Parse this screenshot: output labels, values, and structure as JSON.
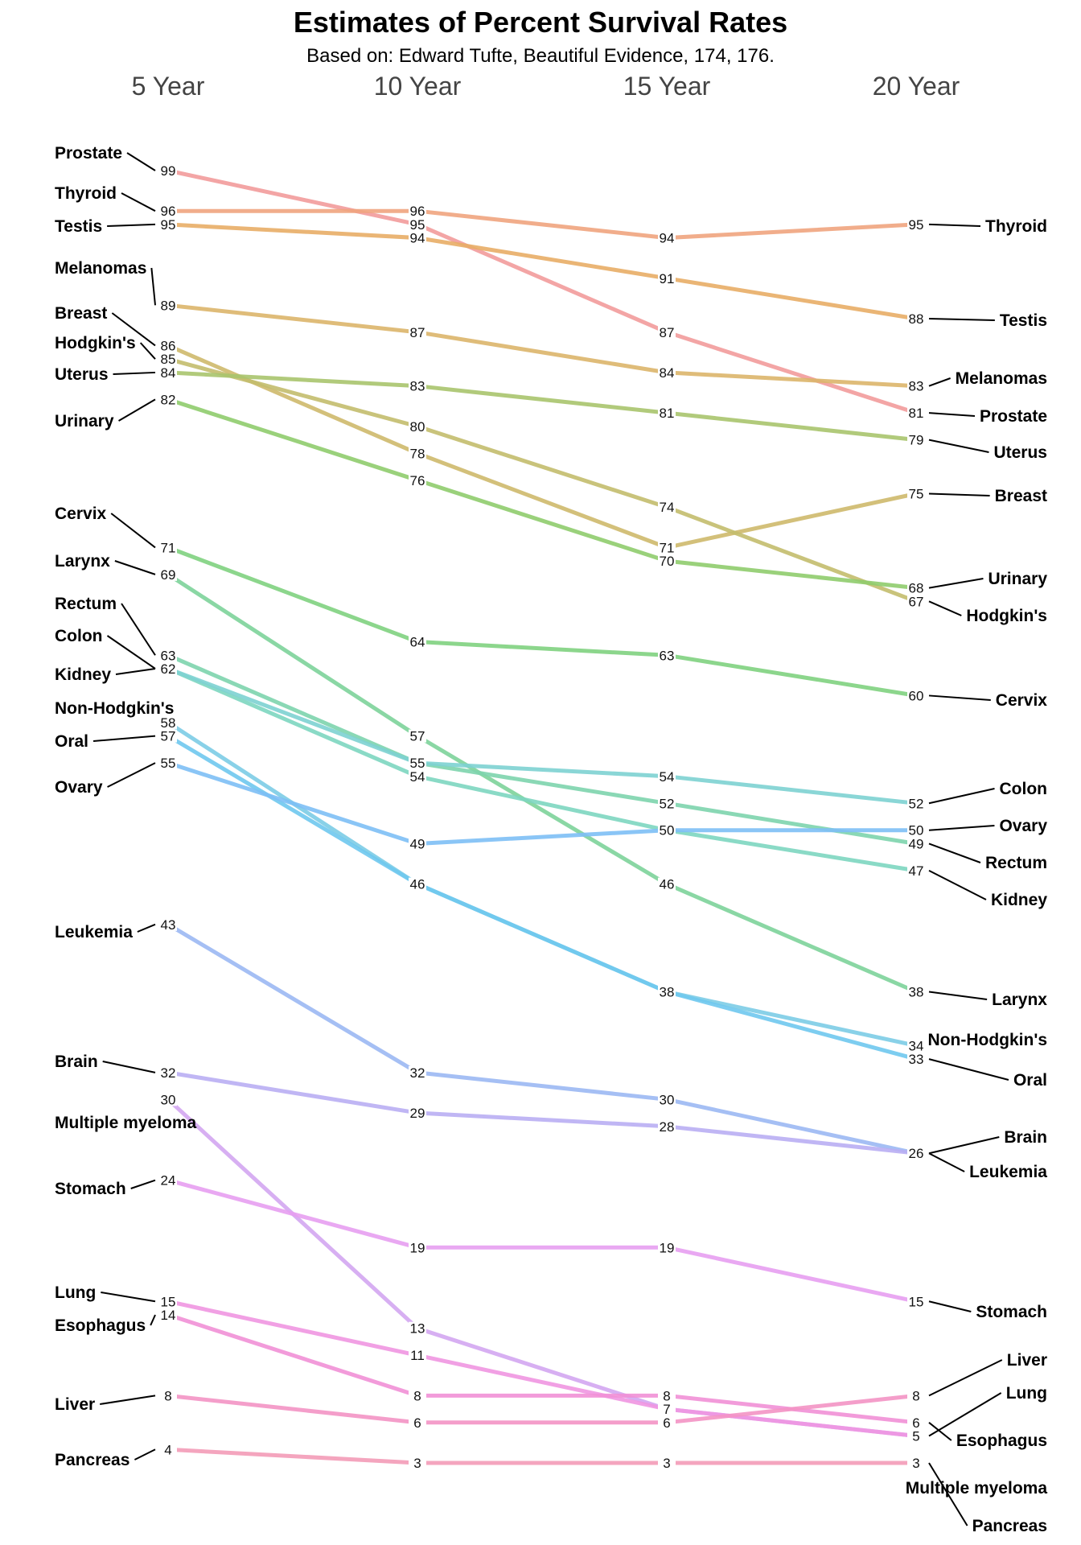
{
  "title": "Estimates of Percent Survival Rates",
  "subtitle": "Based on: Edward Tufte, Beautiful Evidence, 174, 176.",
  "chart_data": {
    "type": "slope",
    "title": "Estimates of Percent Survival Rates",
    "subtitle": "Based on: Edward Tufte, Beautiful Evidence, 174, 176.",
    "x": [
      "5 Year",
      "10 Year",
      "15 Year",
      "20 Year"
    ],
    "ylim": [
      3,
      99
    ],
    "series": [
      {
        "name": "Prostate",
        "values": [
          99,
          95,
          87,
          81
        ],
        "color": "#f29b9b"
      },
      {
        "name": "Thyroid",
        "values": [
          96,
          96,
          94,
          95
        ],
        "color": "#efa47e"
      },
      {
        "name": "Testis",
        "values": [
          95,
          94,
          91,
          88
        ],
        "color": "#e8ad66"
      },
      {
        "name": "Melanomas",
        "values": [
          89,
          87,
          84,
          83
        ],
        "color": "#dcb56a"
      },
      {
        "name": "Breast",
        "values": [
          86,
          78,
          71,
          75
        ],
        "color": "#ceb96b"
      },
      {
        "name": "Hodgkin's",
        "values": [
          85,
          80,
          74,
          67
        ],
        "color": "#c3bd6d"
      },
      {
        "name": "Uterus",
        "values": [
          84,
          83,
          81,
          79
        ],
        "color": "#a9c46d"
      },
      {
        "name": "Urinary",
        "values": [
          82,
          76,
          70,
          68
        ],
        "color": "#8fcc6d"
      },
      {
        "name": "Cervix",
        "values": [
          71,
          64,
          63,
          60
        ],
        "color": "#7fd17f"
      },
      {
        "name": "Larynx",
        "values": [
          69,
          57,
          46,
          38
        ],
        "color": "#7dd39a"
      },
      {
        "name": "Rectum",
        "values": [
          63,
          55,
          52,
          49
        ],
        "color": "#7dd4ad"
      },
      {
        "name": "Kidney",
        "values": [
          62,
          54,
          50,
          47
        ],
        "color": "#7dd6c0"
      },
      {
        "name": "Colon",
        "values": [
          62,
          55,
          54,
          52
        ],
        "color": "#7dd2d2"
      },
      {
        "name": "Non-Hodgkin's",
        "values": [
          58,
          46,
          38,
          34
        ],
        "color": "#7ccce6"
      },
      {
        "name": "Oral",
        "values": [
          57,
          46,
          38,
          33
        ],
        "color": "#6fc8ee"
      },
      {
        "name": "Ovary",
        "values": [
          55,
          49,
          50,
          50
        ],
        "color": "#7dbff5"
      },
      {
        "name": "Leukemia",
        "values": [
          43,
          32,
          30,
          26
        ],
        "color": "#9bb8f3"
      },
      {
        "name": "Brain",
        "values": [
          32,
          29,
          28,
          26
        ],
        "color": "#b9aef3"
      },
      {
        "name": "Multiple myeloma",
        "values": [
          30,
          13,
          7,
          5
        ],
        "color": "#d3a6f1"
      },
      {
        "name": "Stomach",
        "values": [
          24,
          19,
          19,
          15
        ],
        "color": "#e79ff1"
      },
      {
        "name": "Lung",
        "values": [
          15,
          11,
          7,
          5
        ],
        "color": "#f096e1"
      },
      {
        "name": "Esophagus",
        "values": [
          14,
          8,
          8,
          6
        ],
        "color": "#f190d6"
      },
      {
        "name": "Liver",
        "values": [
          8,
          6,
          6,
          8
        ],
        "color": "#f393c4"
      },
      {
        "name": "Pancreas",
        "values": [
          4,
          3,
          3,
          3
        ],
        "color": "#f39bb7"
      }
    ],
    "left_labels": [
      {
        "series": "Prostate",
        "text": "Prostate"
      },
      {
        "series": "Thyroid",
        "text": "Thyroid"
      },
      {
        "series": "Testis",
        "text": "Testis"
      },
      {
        "series": "Melanomas",
        "text": "Melanomas"
      },
      {
        "series": "Breast",
        "text": "Breast"
      },
      {
        "series": "Hodgkin's",
        "text": "Hodgkin's"
      },
      {
        "series": "Uterus",
        "text": "Uterus"
      },
      {
        "series": "Urinary",
        "text": "Urinary"
      },
      {
        "series": "Cervix",
        "text": "Cervix"
      },
      {
        "series": "Larynx",
        "text": "Larynx"
      },
      {
        "series": "Rectum",
        "text": "Rectum"
      },
      {
        "series": "Colon",
        "text": "Colon"
      },
      {
        "series": "Kidney",
        "text": "Kidney"
      },
      {
        "series": "Non-Hodgkin's",
        "text": "Non-Hodgkin's"
      },
      {
        "series": "Oral",
        "text": "Oral"
      },
      {
        "series": "Ovary",
        "text": "Ovary"
      },
      {
        "series": "Leukemia",
        "text": "Leukemia"
      },
      {
        "series": "Brain",
        "text": "Brain"
      },
      {
        "series": "Multiple myeloma",
        "text": "Multiple myeloma"
      },
      {
        "series": "Stomach",
        "text": "Stomach"
      },
      {
        "series": "Lung",
        "text": "Lung"
      },
      {
        "series": "Esophagus",
        "text": "Esophagus"
      },
      {
        "series": "Liver",
        "text": "Liver"
      },
      {
        "series": "Pancreas",
        "text": "Pancreas"
      }
    ],
    "right_labels": [
      {
        "series": "Thyroid",
        "text": "Thyroid"
      },
      {
        "series": "Testis",
        "text": "Testis"
      },
      {
        "series": "Melanomas",
        "text": "Melanomas"
      },
      {
        "series": "Prostate",
        "text": "Prostate"
      },
      {
        "series": "Uterus",
        "text": "Uterus"
      },
      {
        "series": "Breast",
        "text": "Breast"
      },
      {
        "series": "Urinary",
        "text": "Urinary"
      },
      {
        "series": "Hodgkin's",
        "text": "Hodgkin's"
      },
      {
        "series": "Cervix",
        "text": "Cervix"
      },
      {
        "series": "Colon",
        "text": "Colon"
      },
      {
        "series": "Ovary",
        "text": "Ovary"
      },
      {
        "series": "Rectum",
        "text": "Rectum"
      },
      {
        "series": "Kidney",
        "text": "Kidney"
      },
      {
        "series": "Larynx",
        "text": "Larynx"
      },
      {
        "series": "Non-Hodgkin's",
        "text": "Non-Hodgkin's"
      },
      {
        "series": "Oral",
        "text": "Oral"
      },
      {
        "series": "Brain",
        "text": "Brain"
      },
      {
        "series": "Leukemia",
        "text": "Leukemia"
      },
      {
        "series": "Stomach",
        "text": "Stomach"
      },
      {
        "series": "Liver",
        "text": "Liver"
      },
      {
        "series": "Lung",
        "text": "Lung"
      },
      {
        "series": "Esophagus",
        "text": "Esophagus"
      },
      {
        "series": "Multiple myeloma",
        "text": "Multiple myeloma"
      },
      {
        "series": "Pancreas",
        "text": "Pancreas"
      }
    ],
    "grid": false,
    "legend": "none"
  }
}
